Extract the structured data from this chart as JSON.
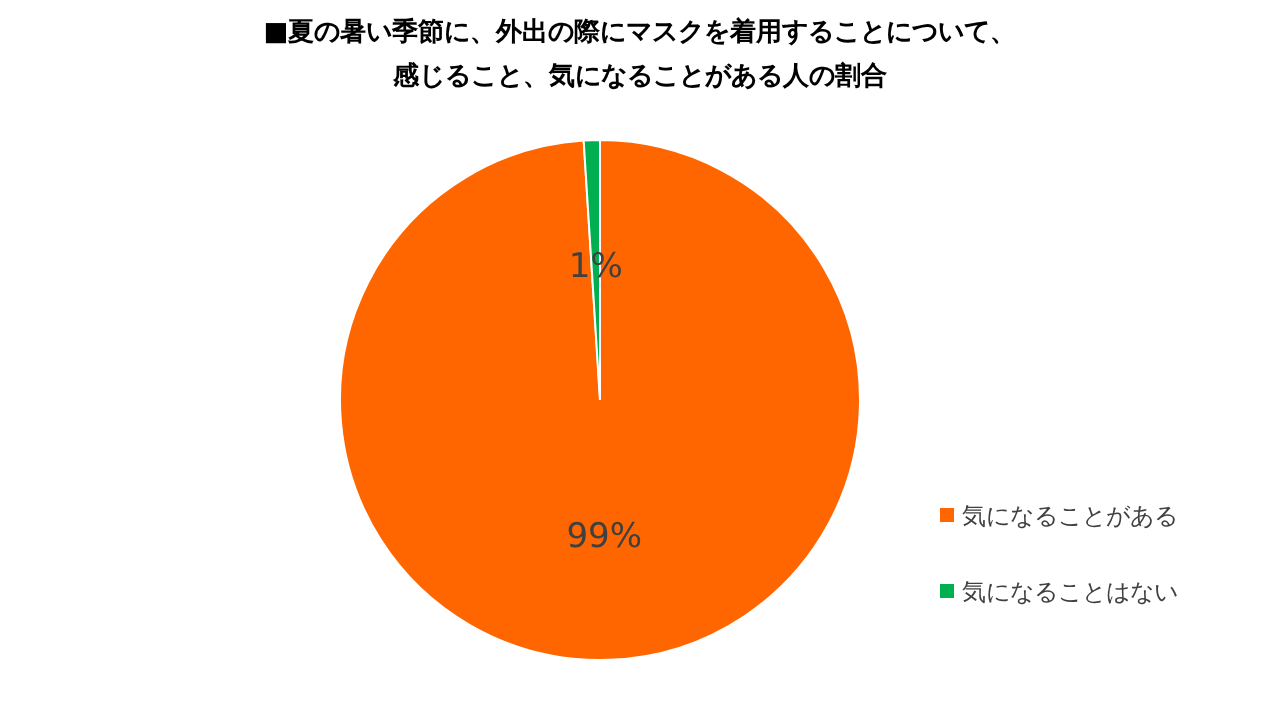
{
  "chart_data": {
    "type": "pie",
    "title": "■夏の暑い季節に、外出の際にマスクを着用することについて、感じること、気になることがある人の割合",
    "categories": [
      "気になることがある",
      "気になることはない"
    ],
    "values": [
      99,
      1
    ],
    "colors": [
      "#ff6600",
      "#00b050"
    ],
    "value_labels": [
      "99%",
      "1%"
    ],
    "legend": "right"
  }
}
